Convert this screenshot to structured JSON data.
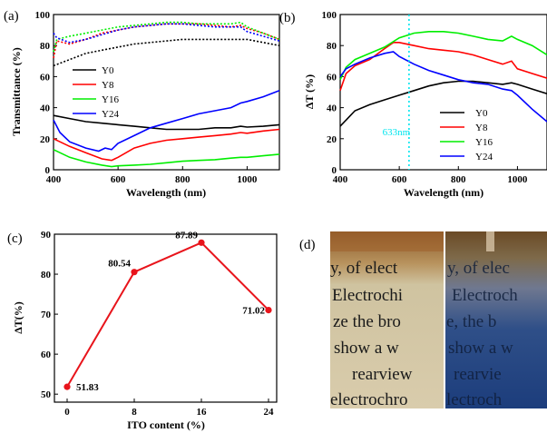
{
  "panels": {
    "a": "(a)",
    "b": "(b)",
    "c": "(c)",
    "d": "(d)"
  },
  "colors": {
    "Y0": "#000000",
    "Y8": "#ff0000",
    "Y16": "#00ee00",
    "Y24": "#0000ff",
    "marker": "#00e5ee",
    "panel_c": "#e8141b"
  },
  "chart_data": [
    {
      "id": "a",
      "type": "line",
      "xlabel": "Wavelength (nm)",
      "ylabel": "Transmittance (%)",
      "xlim": [
        400,
        1100
      ],
      "ylim": [
        0,
        100
      ],
      "xticks": [
        400,
        600,
        800,
        1000
      ],
      "yticks": [
        0,
        20,
        40,
        60,
        80,
        100
      ],
      "legend": "center-left",
      "series": [
        {
          "name": "Y0",
          "style": "solid",
          "x": [
            400,
            450,
            500,
            550,
            600,
            650,
            700,
            750,
            800,
            850,
            900,
            950,
            980,
            1000,
            1050,
            1100
          ],
          "y": [
            35,
            33,
            31,
            30,
            29,
            28,
            27,
            26,
            26,
            26,
            27,
            27,
            28,
            27.5,
            28,
            29
          ]
        },
        {
          "name": "Y8",
          "style": "solid",
          "x": [
            400,
            450,
            500,
            550,
            580,
            600,
            650,
            700,
            750,
            800,
            850,
            900,
            950,
            980,
            1000,
            1050,
            1100
          ],
          "y": [
            20,
            15,
            11,
            7,
            6,
            8,
            14,
            17,
            19,
            20,
            21,
            22,
            23,
            24,
            23.5,
            25,
            26
          ]
        },
        {
          "name": "Y16",
          "style": "solid",
          "x": [
            400,
            450,
            500,
            550,
            580,
            600,
            650,
            700,
            750,
            800,
            850,
            900,
            950,
            980,
            1000,
            1050,
            1100
          ],
          "y": [
            13,
            8,
            5,
            3,
            2,
            2.5,
            3,
            3.5,
            4.5,
            5.5,
            6,
            6.5,
            7.5,
            8,
            8,
            9,
            10
          ]
        },
        {
          "name": "Y24",
          "style": "solid",
          "x": [
            400,
            420,
            450,
            500,
            540,
            560,
            580,
            600,
            650,
            700,
            750,
            800,
            850,
            900,
            950,
            980,
            1000,
            1050,
            1100
          ],
          "y": [
            32,
            24,
            18,
            14,
            12,
            14,
            13,
            17,
            22,
            27,
            30,
            33,
            36,
            38,
            40,
            43,
            44,
            47,
            51
          ]
        },
        {
          "name": "Y0",
          "style": "dot",
          "x": [
            400,
            450,
            500,
            550,
            600,
            650,
            700,
            750,
            800,
            850,
            900,
            950,
            980,
            1000,
            1050,
            1100
          ],
          "y": [
            67,
            71,
            75,
            77,
            79,
            81,
            82,
            83,
            84,
            84,
            84,
            84,
            84,
            84,
            82,
            80
          ]
        },
        {
          "name": "Y8",
          "style": "dot",
          "x": [
            400,
            410,
            450,
            500,
            550,
            600,
            650,
            700,
            750,
            800,
            850,
            900,
            950,
            980,
            1000,
            1050,
            1100
          ],
          "y": [
            72,
            83,
            81,
            84,
            88,
            90,
            92,
            93,
            94,
            94,
            94,
            93,
            92,
            93,
            91,
            88,
            84
          ]
        },
        {
          "name": "Y16",
          "style": "dot",
          "x": [
            400,
            410,
            450,
            500,
            550,
            600,
            650,
            700,
            750,
            800,
            850,
            900,
            950,
            980,
            1000,
            1050,
            1100
          ],
          "y": [
            76,
            84,
            86,
            88,
            90,
            92,
            93,
            94,
            95,
            95,
            94,
            94,
            94,
            95,
            92,
            88,
            84
          ]
        },
        {
          "name": "Y24",
          "style": "dot",
          "x": [
            400,
            410,
            450,
            500,
            550,
            600,
            650,
            700,
            750,
            800,
            850,
            900,
            950,
            980,
            1000,
            1050,
            1100
          ],
          "y": [
            88,
            85,
            82,
            84,
            87,
            90,
            92,
            93,
            94,
            94,
            93,
            92,
            92,
            92,
            89,
            86,
            83
          ]
        }
      ]
    },
    {
      "id": "b",
      "type": "line",
      "xlabel": "Wavelength (nm)",
      "ylabel": "ΔT (%)",
      "xlim": [
        400,
        1100
      ],
      "ylim": [
        0,
        100
      ],
      "xticks": [
        400,
        600,
        800,
        1000
      ],
      "yticks": [
        0,
        20,
        40,
        60,
        80,
        100
      ],
      "legend": "bottom-right",
      "annotation": "633nm",
      "annotation_x": 633,
      "series": [
        {
          "name": "Y0",
          "x": [
            400,
            450,
            500,
            550,
            600,
            650,
            700,
            750,
            800,
            850,
            900,
            950,
            980,
            1000,
            1050,
            1100
          ],
          "y": [
            28,
            38,
            42,
            45,
            48,
            51,
            54,
            56,
            57,
            57,
            56,
            55,
            56,
            55,
            52,
            49
          ]
        },
        {
          "name": "Y8",
          "x": [
            400,
            420,
            450,
            500,
            550,
            580,
            600,
            650,
            700,
            750,
            800,
            850,
            900,
            950,
            980,
            1000,
            1050,
            1100
          ],
          "y": [
            51,
            62,
            67,
            71,
            78,
            82,
            82,
            80,
            78,
            77,
            76,
            74,
            71,
            68,
            70,
            65,
            62,
            59
          ]
        },
        {
          "name": "Y16",
          "x": [
            400,
            420,
            450,
            500,
            550,
            600,
            650,
            700,
            750,
            800,
            850,
            900,
            950,
            980,
            1000,
            1050,
            1100
          ],
          "y": [
            58,
            66,
            71,
            75,
            79,
            85,
            88,
            89,
            89,
            88,
            86,
            84,
            83,
            86,
            84,
            80,
            74
          ]
        },
        {
          "name": "Y24",
          "x": [
            400,
            420,
            450,
            500,
            550,
            580,
            600,
            650,
            700,
            750,
            800,
            850,
            900,
            950,
            980,
            1000,
            1050,
            1100
          ],
          "y": [
            60,
            65,
            68,
            72,
            75,
            76,
            73,
            68,
            64,
            61,
            58,
            56,
            55,
            52,
            51,
            48,
            39,
            31
          ]
        }
      ]
    },
    {
      "id": "c",
      "type": "line",
      "xlabel": "ITO content (%)",
      "ylabel": "ΔT(%)",
      "categories": [
        "0",
        "8",
        "16",
        "24"
      ],
      "x": [
        0,
        8,
        16,
        24
      ],
      "values": [
        51.83,
        80.54,
        87.89,
        71.02
      ],
      "labels": [
        "51.83",
        "80.54",
        "87.89",
        "71.02"
      ],
      "ylim": [
        48,
        90
      ],
      "yticks": [
        50,
        60,
        70,
        80,
        90
      ]
    }
  ],
  "photo": {
    "left_lines": [
      "y, of elect",
      "Electrochi",
      "ze the bro",
      "show a w",
      "rearview",
      "electrochro"
    ],
    "right_lines": [
      "y, of elec",
      "Electroch",
      "e, the b",
      "show a w",
      "rearvie",
      "lectroch"
    ]
  }
}
